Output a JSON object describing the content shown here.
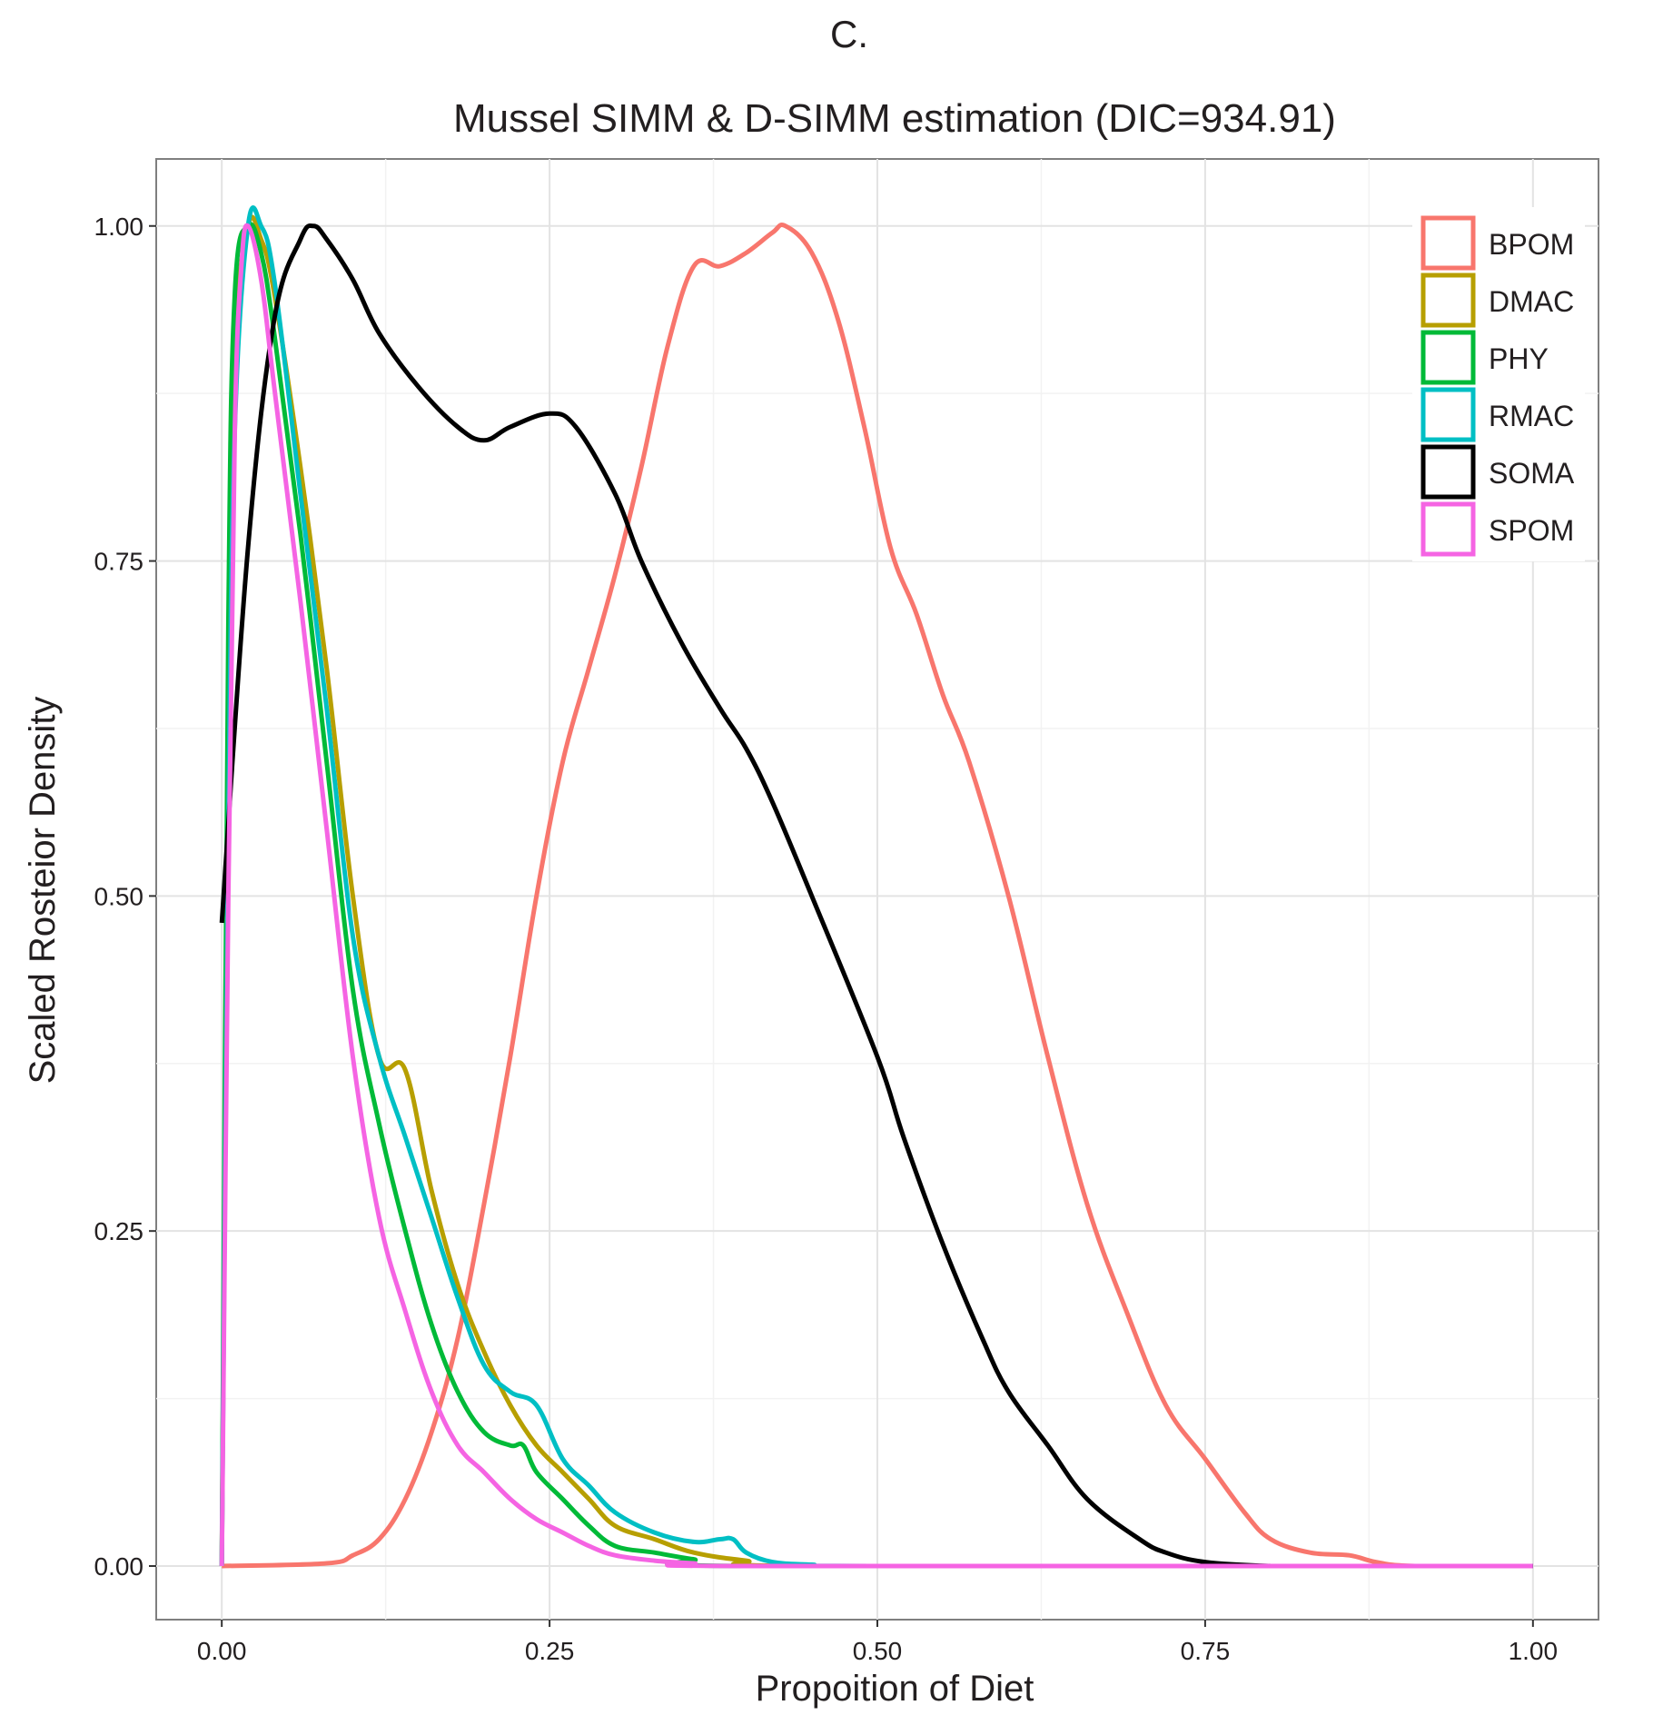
{
  "chart_data": {
    "type": "line",
    "panel_label": "C.",
    "title": "Mussel SIMM & D-SIMM estimation (DIC=934.91)",
    "xlabel": "Propoition of Diet",
    "ylabel": "Scaled Rosteior Density",
    "xlim": [
      -0.05,
      1.05
    ],
    "ylim": [
      -0.04,
      1.05
    ],
    "xticks": [
      0.0,
      0.25,
      0.5,
      0.75,
      1.0
    ],
    "xtick_labels": [
      "0.00",
      "0.25",
      "0.50",
      "0.75",
      "1.00"
    ],
    "yticks": [
      0.0,
      0.25,
      0.5,
      0.75,
      1.0
    ],
    "ytick_labels": [
      "0.00",
      "0.25",
      "0.50",
      "0.75",
      "1.00"
    ],
    "grid": true,
    "legend_position": "top-right",
    "series": [
      {
        "name": "BPOM",
        "color": "#f8766d",
        "x": [
          0.0,
          0.08,
          0.1,
          0.12,
          0.14,
          0.16,
          0.18,
          0.2,
          0.22,
          0.24,
          0.26,
          0.28,
          0.3,
          0.32,
          0.34,
          0.36,
          0.38,
          0.4,
          0.42,
          0.43,
          0.45,
          0.47,
          0.49,
          0.51,
          0.53,
          0.55,
          0.57,
          0.6,
          0.63,
          0.66,
          0.69,
          0.72,
          0.75,
          0.78,
          0.8,
          0.83,
          0.86,
          0.88,
          0.91,
          1.0
        ],
        "y": [
          0.0,
          0.002,
          0.008,
          0.02,
          0.05,
          0.1,
          0.17,
          0.27,
          0.38,
          0.5,
          0.6,
          0.67,
          0.74,
          0.82,
          0.91,
          0.97,
          0.97,
          0.98,
          0.995,
          1.0,
          0.98,
          0.93,
          0.85,
          0.76,
          0.71,
          0.65,
          0.6,
          0.5,
          0.38,
          0.27,
          0.19,
          0.12,
          0.08,
          0.04,
          0.02,
          0.01,
          0.008,
          0.003,
          0.0,
          0.0
        ]
      },
      {
        "name": "DMAC",
        "color": "#b79f00",
        "x": [
          0.0,
          0.005,
          0.01,
          0.02,
          0.03,
          0.04,
          0.06,
          0.08,
          0.1,
          0.12,
          0.14,
          0.16,
          0.18,
          0.2,
          0.22,
          0.24,
          0.26,
          0.28,
          0.3,
          0.33,
          0.36,
          0.4,
          0.45,
          1.0
        ],
        "y": [
          0.0,
          0.6,
          0.9,
          1.0,
          0.99,
          0.95,
          0.82,
          0.67,
          0.5,
          0.38,
          0.37,
          0.28,
          0.21,
          0.16,
          0.12,
          0.09,
          0.07,
          0.05,
          0.03,
          0.02,
          0.01,
          0.004,
          0.0,
          0.0
        ]
      },
      {
        "name": "PHY",
        "color": "#00ba38",
        "x": [
          0.0,
          0.005,
          0.01,
          0.02,
          0.03,
          0.04,
          0.06,
          0.08,
          0.1,
          0.12,
          0.14,
          0.16,
          0.18,
          0.2,
          0.22,
          0.23,
          0.24,
          0.26,
          0.28,
          0.3,
          0.33,
          0.36,
          0.4,
          1.0
        ],
        "y": [
          0.0,
          0.7,
          0.95,
          1.0,
          0.98,
          0.92,
          0.77,
          0.6,
          0.43,
          0.33,
          0.25,
          0.18,
          0.13,
          0.1,
          0.09,
          0.09,
          0.07,
          0.05,
          0.03,
          0.015,
          0.01,
          0.005,
          0.0,
          0.0
        ]
      },
      {
        "name": "RMAC",
        "color": "#00bfc4",
        "x": [
          0.0,
          0.005,
          0.01,
          0.02,
          0.03,
          0.04,
          0.06,
          0.08,
          0.1,
          0.12,
          0.14,
          0.16,
          0.18,
          0.2,
          0.22,
          0.24,
          0.26,
          0.28,
          0.3,
          0.33,
          0.36,
          0.38,
          0.39,
          0.4,
          0.42,
          0.45,
          0.5,
          1.0
        ],
        "y": [
          0.0,
          0.55,
          0.85,
          1.0,
          1.0,
          0.96,
          0.8,
          0.64,
          0.47,
          0.38,
          0.32,
          0.26,
          0.2,
          0.15,
          0.13,
          0.12,
          0.08,
          0.06,
          0.04,
          0.025,
          0.018,
          0.02,
          0.02,
          0.01,
          0.003,
          0.001,
          0.0,
          0.0
        ]
      },
      {
        "name": "SOMA",
        "color": "#000000",
        "x": [
          0.0,
          0.02,
          0.04,
          0.06,
          0.07,
          0.08,
          0.1,
          0.12,
          0.15,
          0.18,
          0.2,
          0.22,
          0.25,
          0.27,
          0.3,
          0.32,
          0.35,
          0.38,
          0.4,
          0.42,
          0.45,
          0.5,
          0.52,
          0.55,
          0.58,
          0.6,
          0.63,
          0.66,
          0.7,
          0.72,
          0.75,
          0.8,
          0.85,
          1.0
        ],
        "y": [
          0.48,
          0.76,
          0.93,
          0.99,
          1.0,
          0.99,
          0.96,
          0.92,
          0.88,
          0.85,
          0.84,
          0.85,
          0.86,
          0.85,
          0.8,
          0.75,
          0.69,
          0.64,
          0.61,
          0.57,
          0.5,
          0.38,
          0.32,
          0.24,
          0.17,
          0.13,
          0.09,
          0.05,
          0.02,
          0.01,
          0.003,
          0.0,
          0.0,
          0.0
        ]
      },
      {
        "name": "SPOM",
        "color": "#f564e3",
        "x": [
          0.0,
          0.005,
          0.01,
          0.015,
          0.02,
          0.03,
          0.04,
          0.06,
          0.08,
          0.1,
          0.12,
          0.14,
          0.16,
          0.18,
          0.2,
          0.22,
          0.24,
          0.26,
          0.28,
          0.3,
          0.33,
          0.36,
          0.4,
          1.0
        ],
        "y": [
          0.0,
          0.5,
          0.85,
          0.97,
          1.0,
          0.96,
          0.88,
          0.72,
          0.55,
          0.38,
          0.26,
          0.19,
          0.13,
          0.09,
          0.07,
          0.05,
          0.035,
          0.025,
          0.015,
          0.008,
          0.004,
          0.002,
          0.0,
          0.0
        ]
      }
    ]
  }
}
